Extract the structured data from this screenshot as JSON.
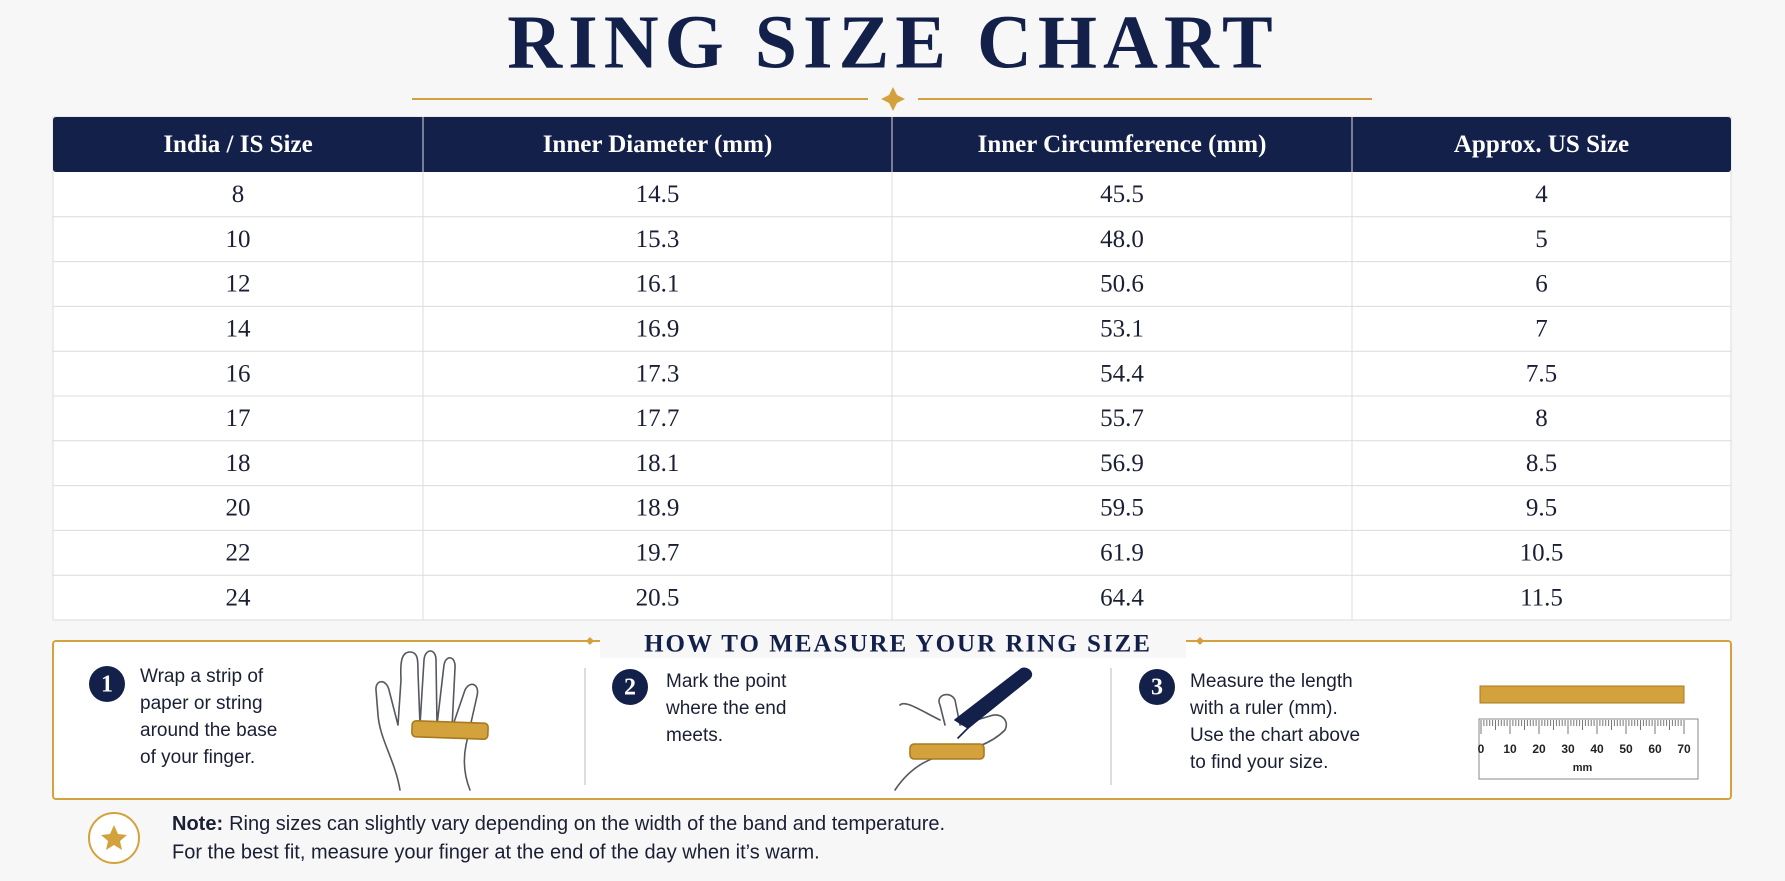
{
  "title": "RING SIZE CHART",
  "table": {
    "columns": [
      "India / IS Size",
      "Inner Diameter (mm)",
      "Inner Circumference (mm)",
      "Approx. US Size"
    ],
    "rows": [
      [
        "8",
        "14.5",
        "45.5",
        "4"
      ],
      [
        "10",
        "15.3",
        "48.0",
        "5"
      ],
      [
        "12",
        "16.1",
        "50.6",
        "6"
      ],
      [
        "14",
        "16.9",
        "53.1",
        "7"
      ],
      [
        "16",
        "17.3",
        "54.4",
        "7.5"
      ],
      [
        "17",
        "17.7",
        "55.7",
        "8"
      ],
      [
        "18",
        "18.1",
        "56.9",
        "8.5"
      ],
      [
        "20",
        "18.9",
        "59.5",
        "9.5"
      ],
      [
        "22",
        "19.7",
        "61.9",
        "10.5"
      ],
      [
        "24",
        "20.5",
        "64.4",
        "11.5"
      ]
    ]
  },
  "measure": {
    "title": "HOW TO MEASURE YOUR RING SIZE",
    "steps": [
      {
        "number": "1",
        "lines": [
          "Wrap a strip of",
          "paper or string",
          "around the base",
          "of your finger."
        ]
      },
      {
        "number": "2",
        "lines": [
          "Mark the point",
          "where the end",
          "meets."
        ]
      },
      {
        "number": "3",
        "lines": [
          "Measure the length",
          "with a ruler (mm).",
          "Use the chart above",
          "to find your size."
        ]
      }
    ]
  },
  "ruler": {
    "labels": [
      "0",
      "10",
      "20",
      "30",
      "40",
      "50",
      "60",
      "70"
    ],
    "unit": "mm"
  },
  "note": {
    "label": "Note:",
    "lines": [
      "Ring sizes can slightly vary depending on the width of the band and temperature.",
      "For the best fit, measure your finger at the end of the day when it’s warm."
    ]
  }
}
